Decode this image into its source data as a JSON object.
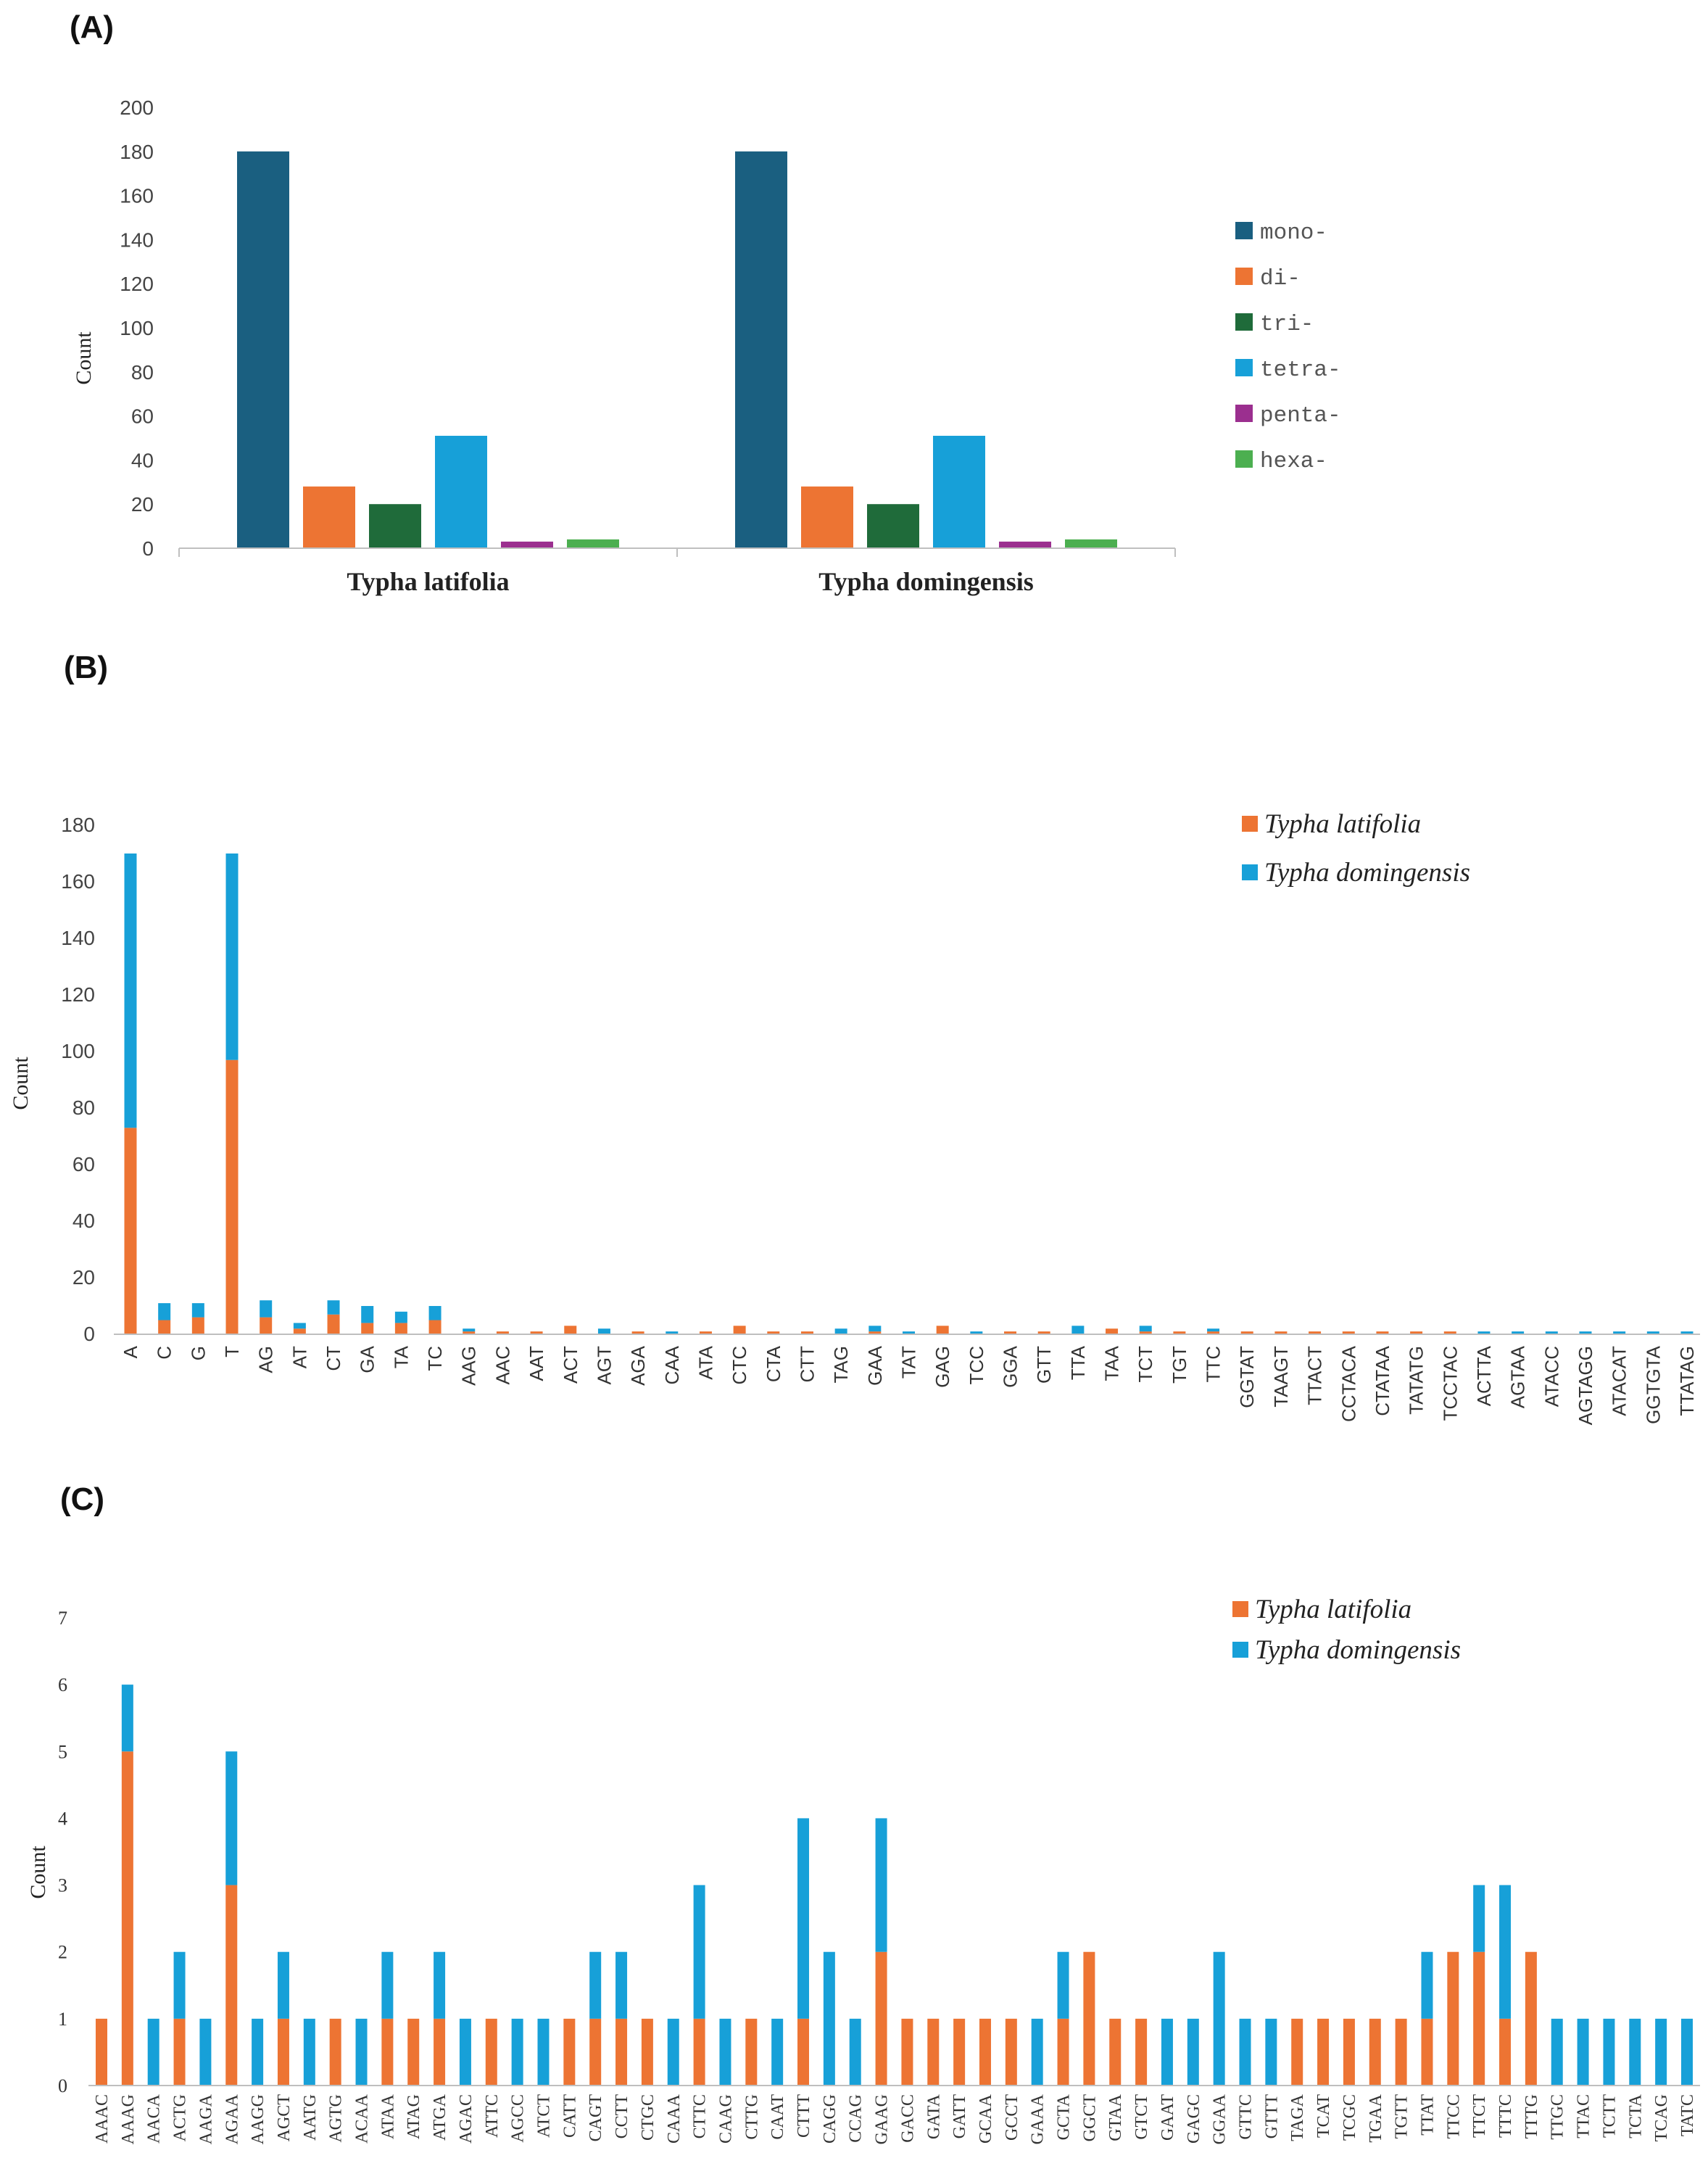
{
  "chart_data": [
    {
      "label": "(A)",
      "type": "bar",
      "ylabel": "Count",
      "ylim": [
        0,
        200
      ],
      "yticks": [
        "0",
        "20",
        "40",
        "60",
        "80",
        "100",
        "120",
        "140",
        "160",
        "180",
        "200"
      ],
      "categories": [
        "Typha latifolia",
        "Typha domingensis"
      ],
      "series": [
        {
          "name": "mono-",
          "color": "#1a5f80",
          "values": [
            180,
            180
          ]
        },
        {
          "name": "di-",
          "color": "#ed7433",
          "values": [
            28,
            28
          ]
        },
        {
          "name": "tri-",
          "color": "#1f6b3a",
          "values": [
            20,
            20
          ]
        },
        {
          "name": "tetra-",
          "color": "#17a0d8",
          "values": [
            51,
            51
          ]
        },
        {
          "name": "penta-",
          "color": "#9b2f8f",
          "values": [
            3,
            3
          ]
        },
        {
          "name": "hexa-",
          "color": "#4caf50",
          "values": [
            4,
            4
          ]
        }
      ]
    },
    {
      "label": "(B)",
      "type": "stacked-bar",
      "ylabel": "Count",
      "ylim": [
        0,
        180
      ],
      "yticks": [
        "0",
        "20",
        "40",
        "60",
        "80",
        "100",
        "120",
        "140",
        "160",
        "180"
      ],
      "categories": [
        "A",
        "C",
        "G",
        "T",
        "AG",
        "AT",
        "CT",
        "GA",
        "TA",
        "TC",
        "AAG",
        "AAC",
        "AAT",
        "ACT",
        "AGT",
        "AGA",
        "CAA",
        "ATA",
        "CTC",
        "CTA",
        "CTT",
        "TAG",
        "GAA",
        "TAT",
        "GAG",
        "TCC",
        "GGA",
        "GTT",
        "TTA",
        "TAA",
        "TCT",
        "TGT",
        "TTC",
        "GGTAT",
        "TAAGT",
        "TTACT",
        "CCTACA",
        "CTATAA",
        "TATATG",
        "TCCTAC",
        "ACTTA",
        "AGTAA",
        "ATACC",
        "AGTAGG",
        "ATACAT",
        "GGTGTA",
        "TTATAG"
      ],
      "series": [
        {
          "name": "Typha latifolia",
          "color": "#ed7433",
          "values": [
            73,
            5,
            6,
            97,
            6,
            2,
            7,
            4,
            4,
            5,
            1,
            1,
            1,
            3,
            0,
            1,
            0,
            1,
            3,
            1,
            1,
            0,
            1,
            0,
            3,
            0,
            1,
            1,
            0,
            2,
            1,
            1,
            1,
            1,
            1,
            1,
            1,
            1,
            1,
            1,
            0,
            0,
            0,
            0,
            0,
            0,
            0
          ]
        },
        {
          "name": "Typha domingensis",
          "color": "#17a0d8",
          "values": [
            97,
            6,
            5,
            73,
            6,
            2,
            5,
            6,
            4,
            5,
            1,
            0,
            0,
            0,
            2,
            0,
            1,
            0,
            0,
            0,
            0,
            2,
            2,
            1,
            0,
            1,
            0,
            0,
            3,
            0,
            2,
            0,
            1,
            0,
            0,
            0,
            0,
            0,
            0,
            0,
            1,
            1,
            1,
            1,
            1,
            1,
            1
          ]
        }
      ]
    },
    {
      "label": "(C)",
      "type": "stacked-bar",
      "ylabel": "Count",
      "ylim": [
        0,
        7
      ],
      "yticks": [
        "0",
        "1",
        "2",
        "3",
        "4",
        "5",
        "6",
        "7"
      ],
      "categories": [
        "AAAC",
        "AAAG",
        "AACA",
        "ACTG",
        "AAGA",
        "AGAA",
        "AAGG",
        "AGCT",
        "AATG",
        "AGTG",
        "ACAA",
        "ATAA",
        "ATAG",
        "ATGA",
        "AGAC",
        "ATTC",
        "AGCC",
        "ATCT",
        "CATT",
        "CAGT",
        "CCTT",
        "CTGC",
        "CAAA",
        "CTTC",
        "CAAG",
        "CTTG",
        "CAAT",
        "CTTT",
        "CAGG",
        "CCAG",
        "GAAG",
        "GACC",
        "GATA",
        "GATT",
        "GCAA",
        "GCCT",
        "GAAA",
        "GCTA",
        "GGCT",
        "GTAA",
        "GTCT",
        "GAAT",
        "GAGC",
        "GGAA",
        "GTTC",
        "GTTT",
        "TAGA",
        "TCAT",
        "TCGC",
        "TGAA",
        "TGTT",
        "TTAT",
        "TTCC",
        "TTCT",
        "TTTC",
        "TTTG",
        "TTGC",
        "TTAC",
        "TCTT",
        "TCTA",
        "TCAG",
        "TATC"
      ],
      "series": [
        {
          "name": "Typha latifolia",
          "color": "#ed7433",
          "values": [
            1,
            5,
            0,
            1,
            0,
            3,
            0,
            1,
            0,
            1,
            0,
            1,
            1,
            1,
            0,
            1,
            0,
            0,
            1,
            1,
            1,
            1,
            0,
            1,
            0,
            1,
            0,
            1,
            0,
            0,
            2,
            1,
            1,
            1,
            1,
            1,
            0,
            1,
            2,
            1,
            1,
            0,
            0,
            0,
            0,
            0,
            1,
            1,
            1,
            1,
            1,
            1,
            2,
            2,
            1,
            2,
            0,
            0,
            0,
            0,
            0,
            0
          ]
        },
        {
          "name": "Typha domingensis",
          "color": "#17a0d8",
          "values": [
            0,
            1,
            1,
            1,
            1,
            2,
            1,
            1,
            1,
            0,
            1,
            1,
            0,
            1,
            1,
            0,
            1,
            1,
            0,
            1,
            1,
            0,
            1,
            2,
            1,
            0,
            1,
            3,
            2,
            1,
            2,
            0,
            0,
            0,
            0,
            0,
            1,
            1,
            0,
            0,
            0,
            1,
            1,
            2,
            1,
            1,
            0,
            0,
            0,
            0,
            0,
            1,
            0,
            1,
            2,
            0,
            1,
            1,
            1,
            1,
            1,
            1
          ]
        }
      ]
    }
  ]
}
